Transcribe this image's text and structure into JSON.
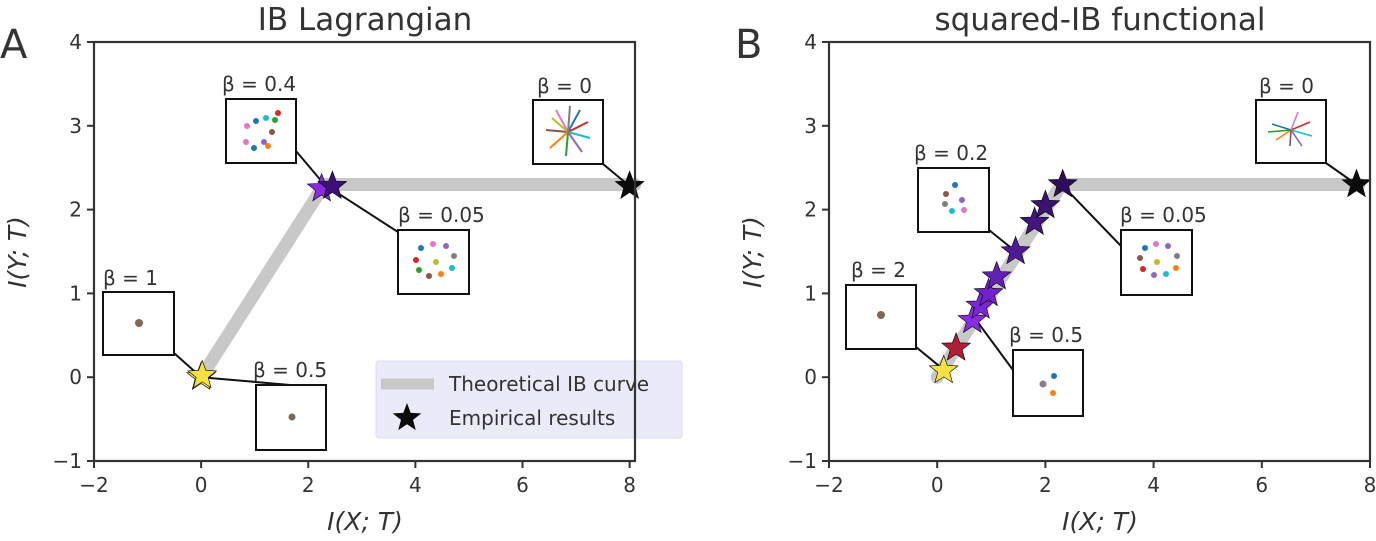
{
  "chart_data": [
    {
      "panel": "A",
      "type": "line",
      "title": "IB Lagrangian",
      "xlabel": "I(X; T)",
      "ylabel": "I(Y; T)",
      "xlim": [
        -2,
        8.1
      ],
      "ylim": [
        -1,
        4
      ],
      "xticks": [
        -2,
        0,
        2,
        4,
        6,
        8
      ],
      "yticks": [
        -1,
        0,
        1,
        2,
        3,
        4
      ],
      "curve": {
        "name": "Theoretical IB curve",
        "x": [
          0,
          2.3,
          8.1
        ],
        "y": [
          0,
          2.3,
          2.3
        ]
      },
      "empirical": [
        {
          "beta": "1",
          "x": 0.0,
          "y": 0.0,
          "color": "#f5e142"
        },
        {
          "beta": "0.5",
          "x": 0.02,
          "y": 0.02,
          "color": "#f5e142"
        },
        {
          "beta": "0.4",
          "x": 2.25,
          "y": 2.25,
          "color": "#8a2be2"
        },
        {
          "beta": "0.05",
          "x": 2.45,
          "y": 2.28,
          "color": "#3d0f7a"
        },
        {
          "beta": "0",
          "x": 8.0,
          "y": 2.28,
          "color": "#0b0b0b"
        }
      ],
      "insets": [
        {
          "label": "β = 1",
          "points_to": [
            0,
            0
          ]
        },
        {
          "label": "β = 0.5",
          "points_to": [
            0,
            0
          ]
        },
        {
          "label": "β = 0.4",
          "points_to": [
            2.3,
            2.3
          ]
        },
        {
          "label": "β = 0.05",
          "points_to": [
            2.3,
            2.3
          ]
        },
        {
          "label": "β = 0",
          "points_to": [
            8.0,
            2.28
          ]
        }
      ],
      "legend": {
        "position": "lower-right",
        "entries": [
          "Theoretical IB curve",
          "Empirical results"
        ]
      }
    },
    {
      "panel": "B",
      "type": "line",
      "title": "squared-IB functional",
      "xlabel": "I(X; T)",
      "ylabel": "I(Y; T)",
      "xlim": [
        -2,
        8
      ],
      "ylim": [
        -1,
        4
      ],
      "xticks": [
        -2,
        0,
        2,
        4,
        6,
        8
      ],
      "yticks": [
        -1,
        0,
        1,
        2,
        3,
        4
      ],
      "curve": {
        "name": "Theoretical IB curve",
        "x": [
          0,
          2.3,
          7.8
        ],
        "y": [
          0,
          2.3,
          2.3
        ]
      },
      "empirical": [
        {
          "x": 0.12,
          "y": 0.08,
          "color": "#f5e142"
        },
        {
          "x": 0.35,
          "y": 0.35,
          "color": "#b01e35"
        },
        {
          "x": 0.65,
          "y": 0.68,
          "color": "#8a2be2"
        },
        {
          "x": 0.8,
          "y": 0.85,
          "color": "#7d26d8"
        },
        {
          "x": 0.95,
          "y": 1.0,
          "color": "#7222c8"
        },
        {
          "x": 1.1,
          "y": 1.2,
          "color": "#6320b5"
        },
        {
          "x": 1.45,
          "y": 1.5,
          "color": "#4f1a95"
        },
        {
          "x": 1.8,
          "y": 1.85,
          "color": "#421680"
        },
        {
          "x": 2.0,
          "y": 2.05,
          "color": "#3a1272"
        },
        {
          "x": 2.32,
          "y": 2.3,
          "color": "#2d0d5a"
        },
        {
          "x": 7.75,
          "y": 2.3,
          "color": "#0b0b0b"
        }
      ],
      "insets": [
        {
          "label": "β = 2",
          "points_to": [
            0.1,
            0.1
          ]
        },
        {
          "label": "β = 0.5",
          "points_to": [
            0.7,
            0.7
          ]
        },
        {
          "label": "β = 0.2",
          "points_to": [
            1.45,
            1.5
          ]
        },
        {
          "label": "β = 0.05",
          "points_to": [
            2.3,
            2.3
          ]
        },
        {
          "label": "β = 0",
          "points_to": [
            7.75,
            2.3
          ]
        }
      ]
    }
  ],
  "colors": {
    "axis": "#333333",
    "curve": "#c8c8c8",
    "legend_bg": "#eaeaf8",
    "star_yellow": "#f5e142",
    "star_red": "#b01e35",
    "star_purple": "#8a2be2",
    "star_black": "#0b0b0b"
  }
}
